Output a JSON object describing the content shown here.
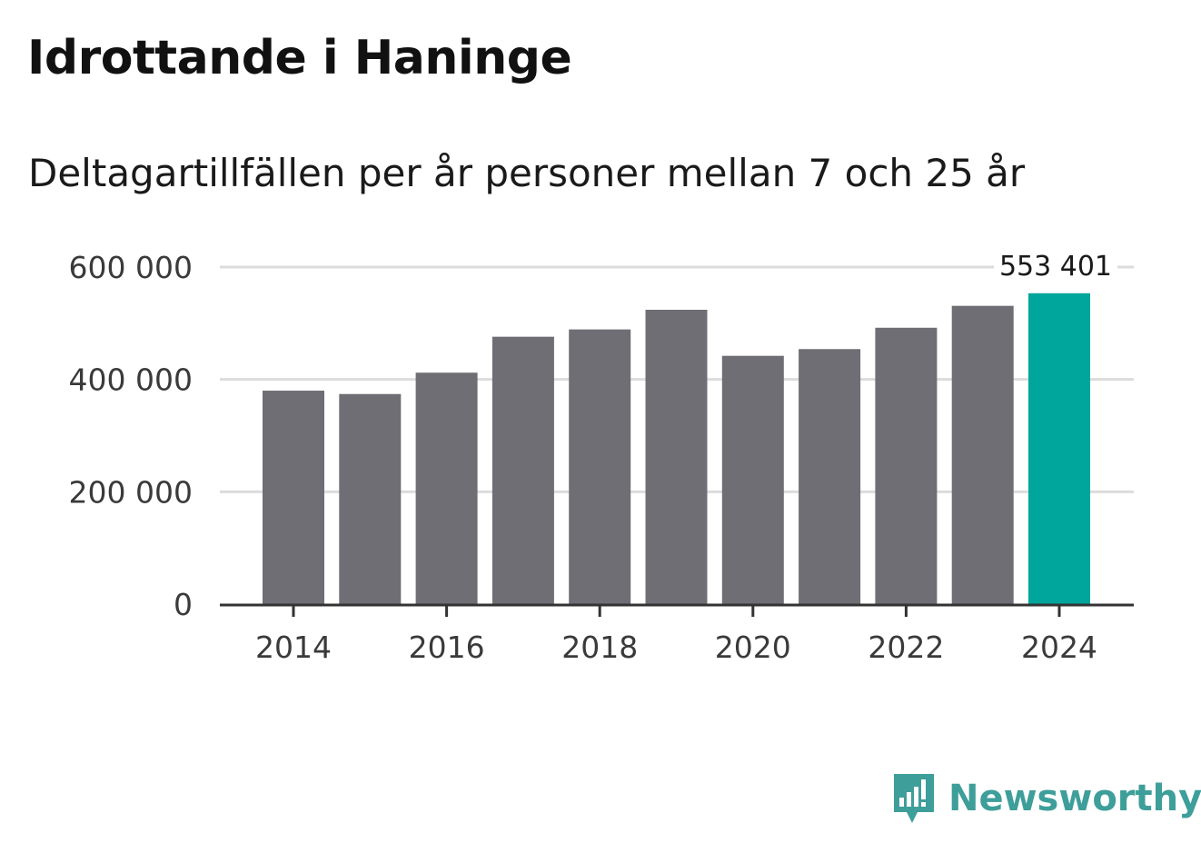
{
  "chart_data": {
    "type": "bar",
    "title": "Idrottande i Haninge",
    "subtitle": "Deltagartillfällen per år personer mellan 7 och 25 år",
    "categories": [
      2014,
      2015,
      2016,
      2017,
      2018,
      2019,
      2020,
      2021,
      2022,
      2023,
      2024
    ],
    "values": [
      380000,
      374000,
      412000,
      476000,
      489000,
      524000,
      442000,
      454000,
      492000,
      531000,
      553401
    ],
    "x_ticks": [
      "2014",
      "2016",
      "2018",
      "2020",
      "2022",
      "2024"
    ],
    "y_ticks": [
      "0",
      "200 000",
      "400 000",
      "600 000"
    ],
    "ylim": [
      0,
      600000
    ],
    "highlight_index": 10,
    "highlight_label": "553 401",
    "grid": true,
    "colors": {
      "bar": "#6f6e74",
      "highlight": "#00a59b",
      "grid": "#dcdcdc",
      "axis": "#333333"
    }
  },
  "brand": {
    "name": "Newsworthy",
    "icon": "newsworthy-logo-icon",
    "color": "#3e9e9a"
  }
}
